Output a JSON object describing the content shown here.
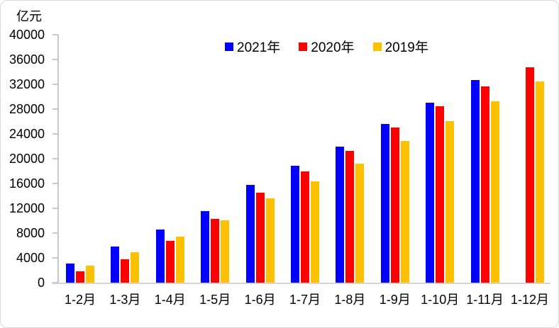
{
  "chart_data": {
    "type": "bar",
    "title": "",
    "unit": "亿元",
    "xlabel": "",
    "ylabel": "亿元",
    "categories": [
      "1-2月",
      "1-3月",
      "1-4月",
      "1-5月",
      "1-6月",
      "1-7月",
      "1-8月",
      "1-9月",
      "1-10月",
      "1-11月",
      "1-12月"
    ],
    "series": [
      {
        "name": "2021年",
        "color": "#0000ff",
        "values": [
          3100,
          5800,
          8600,
          11600,
          15800,
          18900,
          21950,
          25600,
          29050,
          32700,
          null
        ]
      },
      {
        "name": "2020年",
        "color": "#ff0000",
        "values": [
          1850,
          3800,
          6800,
          10250,
          14500,
          18000,
          21250,
          25000,
          28450,
          31650,
          34800
        ]
      },
      {
        "name": "2019年",
        "color": "#ffc000",
        "values": [
          2800,
          4950,
          7450,
          10100,
          13650,
          16400,
          19250,
          22900,
          26100,
          29250,
          32450
        ]
      }
    ],
    "ylim": [
      0,
      40000
    ],
    "ytick_step": 4000,
    "grid": false,
    "legend_position": "top-center",
    "axis_color": "#c9c9c9",
    "text_color": "#000000"
  }
}
